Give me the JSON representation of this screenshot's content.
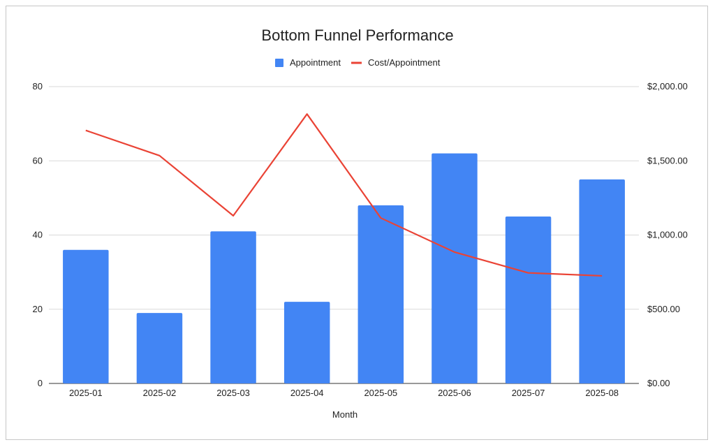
{
  "chart_data": {
    "type": "bar",
    "title": "Bottom Funnel Performance",
    "xlabel": "Month",
    "ylabel": "",
    "y2label": "",
    "categories": [
      "2025-01",
      "2025-02",
      "2025-03",
      "2025-04",
      "2025-05",
      "2025-06",
      "2025-07",
      "2025-08"
    ],
    "series": [
      {
        "name": "Appointment",
        "type": "bar",
        "axis": "left",
        "color": "#4285f4",
        "values": [
          36,
          19,
          41,
          22,
          48,
          62,
          45,
          55
        ]
      },
      {
        "name": "Cost/Appointment",
        "type": "line",
        "axis": "right",
        "color": "#ea4335",
        "values": [
          1705,
          1535,
          1130,
          1815,
          1115,
          885,
          745,
          725
        ]
      }
    ],
    "ylim": [
      0,
      80
    ],
    "y2lim": [
      0,
      2000
    ],
    "yticks": [
      "0",
      "20",
      "40",
      "60",
      "80"
    ],
    "y2ticks": [
      "$0.00",
      "$500.00",
      "$1,000.00",
      "$1,500.00",
      "$2,000.00"
    ],
    "grid": true,
    "legend_position": "top-center"
  }
}
